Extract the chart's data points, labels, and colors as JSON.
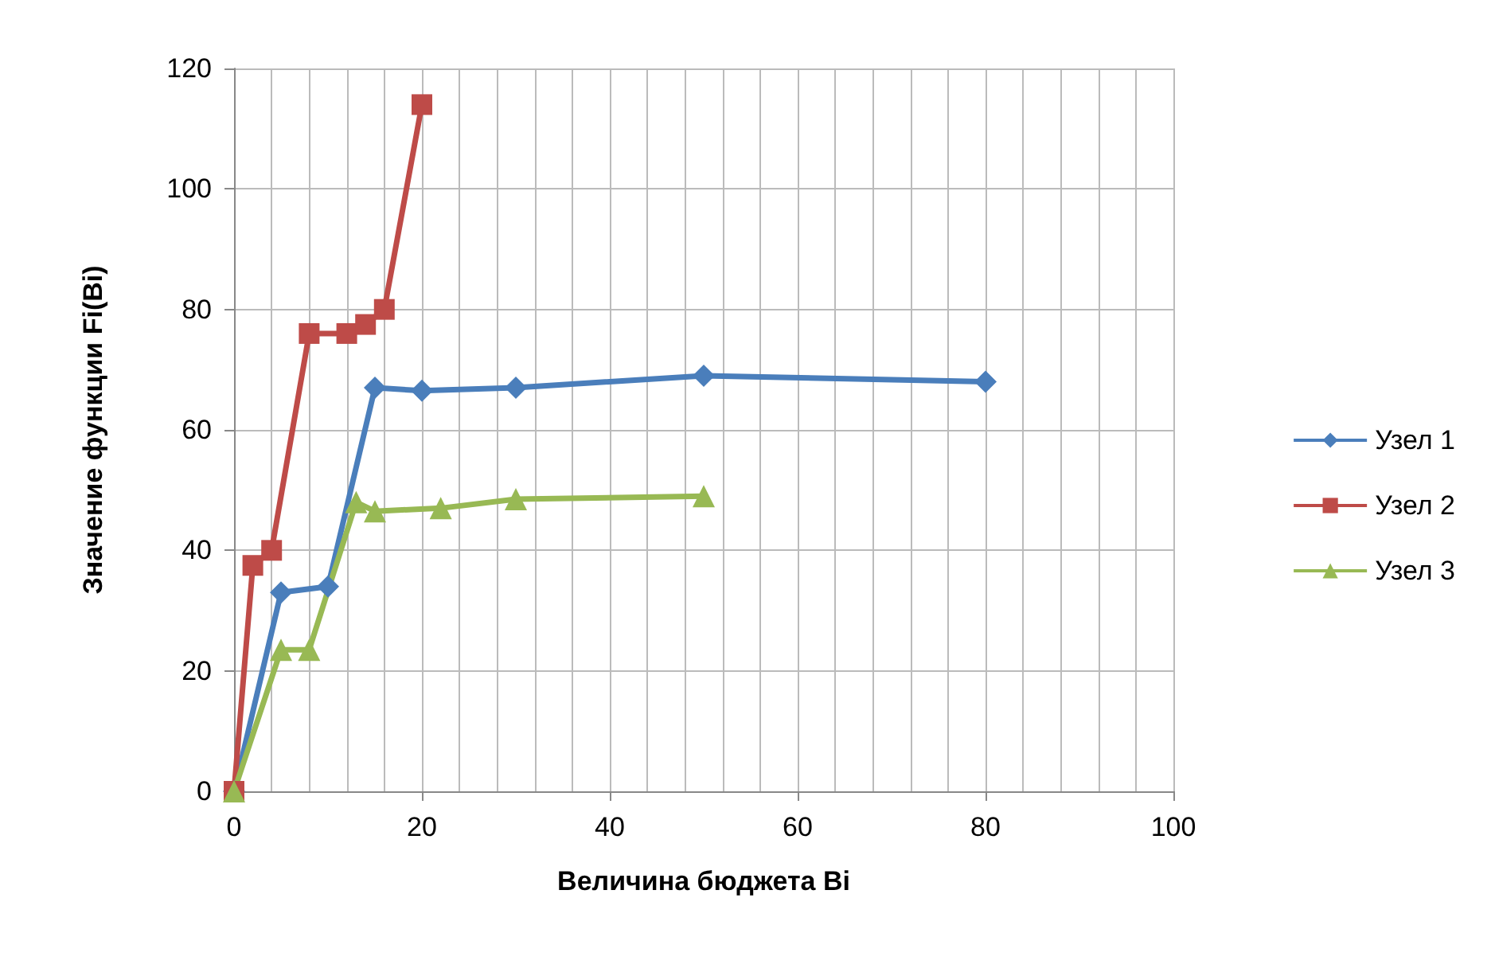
{
  "chart_data": {
    "type": "line",
    "xlabel": "Величина бюджета Bi",
    "ylabel": "Значение функции Fi(Bi)",
    "xlim": [
      0,
      100
    ],
    "xticks": [
      0,
      20,
      40,
      60,
      80,
      100
    ],
    "ylim": [
      0,
      120
    ],
    "yticks": [
      0,
      20,
      40,
      60,
      80,
      100,
      120
    ],
    "grid": true,
    "legend": "right",
    "line_style": "solid",
    "series": [
      {
        "name": "Узел 1",
        "color": "#4a7ebb",
        "marker": "diamond",
        "x": [
          0,
          5,
          10,
          15,
          20,
          30,
          50,
          80
        ],
        "values": [
          0,
          33,
          34,
          67,
          66.5,
          67,
          69,
          68
        ]
      },
      {
        "name": "Узел 2",
        "color": "#be4b48",
        "marker": "square",
        "x": [
          0,
          2,
          4,
          8,
          12,
          14,
          16,
          20
        ],
        "values": [
          0,
          37.5,
          40,
          76,
          76,
          77.5,
          80,
          114
        ]
      },
      {
        "name": "Узел 3",
        "color": "#98b954",
        "marker": "triangle",
        "x": [
          0,
          5,
          8,
          13,
          15,
          22,
          30,
          50
        ],
        "values": [
          0,
          23.5,
          23.5,
          48,
          46.5,
          47,
          48.5,
          49
        ]
      }
    ]
  }
}
